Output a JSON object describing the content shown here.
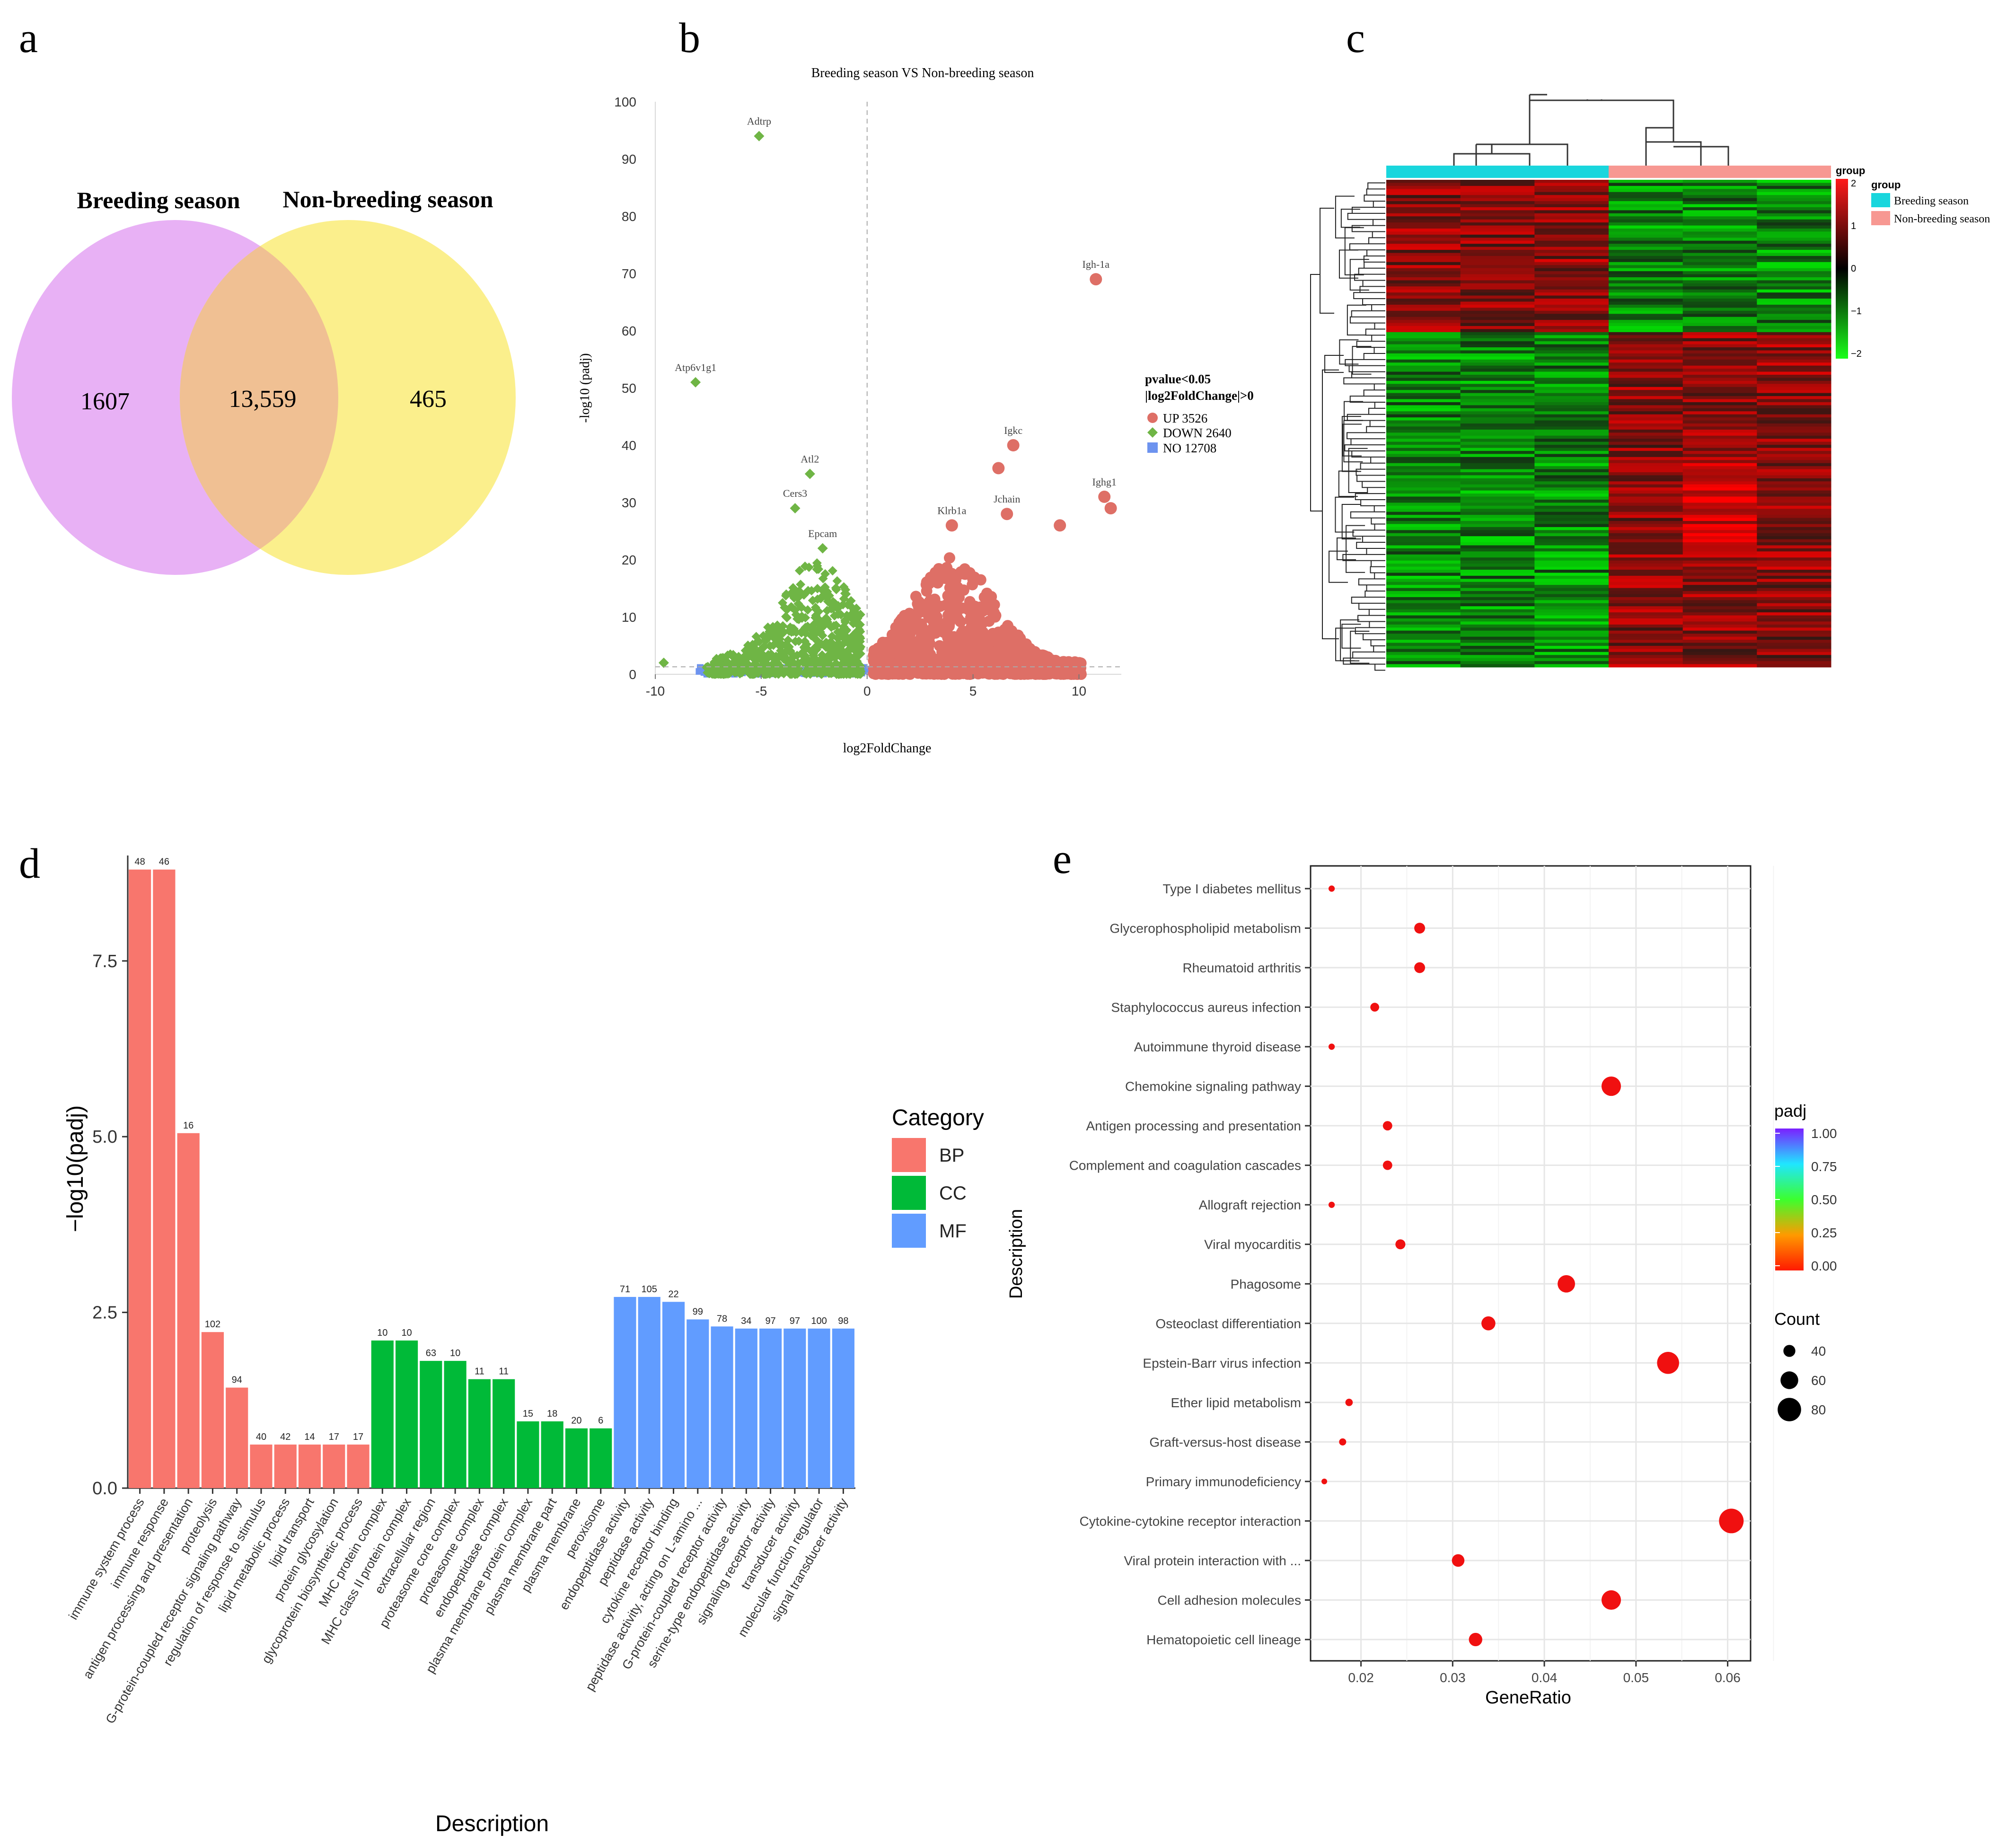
{
  "panels": {
    "a": {
      "letter": "a",
      "sets": [
        {
          "label": "Breeding season",
          "color": "#e8b1f5"
        },
        {
          "label": "Non-breeding season",
          "color": "#fbef8c"
        }
      ],
      "overlap_color": "#f0c093",
      "counts": {
        "left_only": "1607",
        "both": "13,559",
        "right_only": "465"
      }
    },
    "b": {
      "letter": "b",
      "title": "Breeding season VS Non-breeding season",
      "xlabel": "log2FoldChange",
      "ylabel": "-log10 (padj)",
      "xticks": [
        "-10",
        "-5",
        "0",
        "5",
        "10"
      ],
      "yticks": [
        "0",
        "10",
        "20",
        "30",
        "40",
        "50",
        "60",
        "70",
        "80",
        "90",
        "100"
      ],
      "legend": {
        "title_line1": "pvalue<0.05",
        "title_line2": "|log2FoldChange|>0",
        "items": [
          {
            "label": "UP 3526",
            "color": "#de6f66",
            "shape": "circle"
          },
          {
            "label": "DOWN 2640",
            "color": "#6fb545",
            "shape": "diamond"
          },
          {
            "label": "NO 12708",
            "color": "#6d93ef",
            "shape": "square"
          }
        ]
      }
    },
    "c": {
      "letter": "c",
      "legend_title": "group",
      "groups": [
        {
          "label": "Breeding season",
          "color": "#19d6dd"
        },
        {
          "label": "Non-breeding season",
          "color": "#f79892"
        }
      ],
      "colorbar_title": "group",
      "colorbar_ticks": [
        "2",
        "1",
        "0",
        "−1",
        "−2"
      ]
    },
    "d": {
      "letter": "d"
    },
    "e": {
      "letter": "e"
    }
  },
  "chart_data": [
    {
      "type": "venn",
      "sets": [
        "Breeding season",
        "Non-breeding season"
      ],
      "values": {
        "Breeding season only": 1607,
        "both": 13559,
        "Non-breeding season only": 465
      }
    },
    {
      "type": "scatter",
      "title": "Breeding season VS Non-breeding season",
      "xlabel": "log2FoldChange",
      "ylabel": "-log10 (padj)",
      "xlim": [
        -10,
        12
      ],
      "ylim": [
        0,
        100
      ],
      "labeled_points": [
        {
          "label": "Adtrp",
          "x": -5.1,
          "y": 94,
          "group": "DOWN"
        },
        {
          "label": "Atp6v1g1",
          "x": -8.1,
          "y": 51,
          "group": "DOWN"
        },
        {
          "label": "Atl2",
          "x": -2.7,
          "y": 35,
          "group": "DOWN"
        },
        {
          "label": "Cers3",
          "x": -3.4,
          "y": 29,
          "group": "DOWN"
        },
        {
          "label": "Epcam",
          "x": -2.1,
          "y": 22,
          "group": "DOWN"
        },
        {
          "label": "Igh-1a",
          "x": 10.8,
          "y": 69,
          "group": "UP"
        },
        {
          "label": "Igkc",
          "x": 6.9,
          "y": 40,
          "group": "UP"
        },
        {
          "label": "Ighg1",
          "x": 11.2,
          "y": 31,
          "group": "UP"
        },
        {
          "label": "Jchain",
          "x": 6.6,
          "y": 28,
          "group": "UP"
        },
        {
          "label": "Klrb1a",
          "x": 4.0,
          "y": 26,
          "group": "UP"
        }
      ],
      "extra_points": [
        {
          "x": 6.2,
          "y": 36,
          "group": "UP"
        },
        {
          "x": 9.1,
          "y": 26,
          "group": "UP"
        },
        {
          "x": 11.5,
          "y": 29,
          "group": "UP"
        },
        {
          "x": -9.6,
          "y": 2,
          "group": "DOWN"
        }
      ],
      "series": [
        {
          "name": "UP 3526",
          "count": 3526
        },
        {
          "name": "DOWN 2640",
          "count": 2640
        },
        {
          "name": "NO 12708",
          "count": 12708
        }
      ]
    },
    {
      "type": "heatmap",
      "columns": 6,
      "column_groups": [
        "Breeding season",
        "Breeding season",
        "Breeding season",
        "Non-breeding season",
        "Non-breeding season",
        "Non-breeding season"
      ],
      "color_range": [
        -2,
        2
      ]
    },
    {
      "type": "bar",
      "ylabel": "−log10(padj)",
      "xlabel": "Description",
      "ylim": [
        0,
        9
      ],
      "yticks": [
        "0.0",
        "2.5",
        "5.0",
        "7.5"
      ],
      "legend_title": "Category",
      "legend": [
        {
          "name": "BP",
          "color": "#f8766d"
        },
        {
          "name": "CC",
          "color": "#00ba38"
        },
        {
          "name": "MF",
          "color": "#619cff"
        }
      ],
      "bars": [
        {
          "label": "immune system process",
          "value": 8.8,
          "count": "48",
          "category": "BP"
        },
        {
          "label": "immune response",
          "value": 8.8,
          "count": "46",
          "category": "BP"
        },
        {
          "label": "antigen processing and presentation",
          "value": 5.05,
          "count": "16",
          "category": "BP"
        },
        {
          "label": "proteolysis",
          "value": 2.22,
          "count": "102",
          "category": "BP"
        },
        {
          "label": "G-protein-coupled receptor signaling pathway",
          "value": 1.43,
          "count": "94",
          "category": "BP"
        },
        {
          "label": "regulation of response to stimulus",
          "value": 0.62,
          "count": "40",
          "category": "BP"
        },
        {
          "label": "lipid metabolic process",
          "value": 0.62,
          "count": "42",
          "category": "BP"
        },
        {
          "label": "lipid transport",
          "value": 0.62,
          "count": "14",
          "category": "BP"
        },
        {
          "label": "protein glycosylation",
          "value": 0.62,
          "count": "17",
          "category": "BP"
        },
        {
          "label": "glycoprotein biosynthetic process",
          "value": 0.62,
          "count": "17",
          "category": "BP"
        },
        {
          "label": "MHC protein complex",
          "value": 2.1,
          "count": "10",
          "category": "CC"
        },
        {
          "label": "MHC class II protein complex",
          "value": 2.1,
          "count": "10",
          "category": "CC"
        },
        {
          "label": "extracellular region",
          "value": 1.81,
          "count": "63",
          "category": "CC"
        },
        {
          "label": "proteasome core complex",
          "value": 1.81,
          "count": "10",
          "category": "CC"
        },
        {
          "label": "proteasome complex",
          "value": 1.55,
          "count": "11",
          "category": "CC"
        },
        {
          "label": "endopeptidase complex",
          "value": 1.55,
          "count": "11",
          "category": "CC"
        },
        {
          "label": "plasma membrane protein complex",
          "value": 0.95,
          "count": "15",
          "category": "CC"
        },
        {
          "label": "plasma membrane part",
          "value": 0.95,
          "count": "18",
          "category": "CC"
        },
        {
          "label": "plasma membrane",
          "value": 0.85,
          "count": "20",
          "category": "CC"
        },
        {
          "label": "peroxisome",
          "value": 0.85,
          "count": "6",
          "category": "CC"
        },
        {
          "label": "endopeptidase activity",
          "value": 2.72,
          "count": "71",
          "category": "MF"
        },
        {
          "label": "peptidase activity",
          "value": 2.72,
          "count": "105",
          "category": "MF"
        },
        {
          "label": "cytokine receptor binding",
          "value": 2.65,
          "count": "22",
          "category": "MF"
        },
        {
          "label": "peptidase activity, acting on L-amino ...",
          "value": 2.4,
          "count": "99",
          "category": "MF"
        },
        {
          "label": "G-protein-coupled receptor activity",
          "value": 2.3,
          "count": "78",
          "category": "MF"
        },
        {
          "label": "serine-type endopeptidase activity",
          "value": 2.27,
          "count": "34",
          "category": "MF"
        },
        {
          "label": "signaling receptor activity",
          "value": 2.27,
          "count": "97",
          "category": "MF"
        },
        {
          "label": "transducer activity",
          "value": 2.27,
          "count": "97",
          "category": "MF"
        },
        {
          "label": "molecular function regulator",
          "value": 2.27,
          "count": "100",
          "category": "MF"
        },
        {
          "label": "signal transducer activity",
          "value": 2.27,
          "count": "98",
          "category": "MF"
        }
      ]
    },
    {
      "type": "scatter",
      "xlabel": "GeneRatio",
      "ylabel": "Description",
      "xlim": [
        0.0145,
        0.0625
      ],
      "xticks": [
        "0.02",
        "0.03",
        "0.04",
        "0.05",
        "0.06"
      ],
      "color_legend": {
        "title": "padj",
        "ticks": [
          "1.00",
          "0.75",
          "0.50",
          "0.25",
          "0.00"
        ]
      },
      "size_legend": {
        "title": "Count",
        "ticks": [
          "40",
          "60",
          "80"
        ]
      },
      "points": [
        {
          "label": "Type I diabetes mellitus",
          "x": 0.0168,
          "count": 20
        },
        {
          "label": "Glycerophospholipid metabolism",
          "x": 0.0264,
          "count": 36
        },
        {
          "label": "Rheumatoid arthritis",
          "x": 0.0264,
          "count": 36
        },
        {
          "label": "Staphylococcus aureus infection",
          "x": 0.0215,
          "count": 29
        },
        {
          "label": "Autoimmune thyroid disease",
          "x": 0.0168,
          "count": 20
        },
        {
          "label": "Chemokine signaling pathway",
          "x": 0.0473,
          "count": 66
        },
        {
          "label": "Antigen processing and presentation",
          "x": 0.0229,
          "count": 31
        },
        {
          "label": "Complement and coagulation cascades",
          "x": 0.0229,
          "count": 31
        },
        {
          "label": "Allograft rejection",
          "x": 0.0168,
          "count": 20
        },
        {
          "label": "Viral myocarditis",
          "x": 0.0243,
          "count": 33
        },
        {
          "label": "Phagosome",
          "x": 0.0424,
          "count": 59
        },
        {
          "label": "Osteoclast differentiation",
          "x": 0.0339,
          "count": 47
        },
        {
          "label": "Epstein-Barr virus infection",
          "x": 0.0535,
          "count": 75
        },
        {
          "label": "Ether lipid metabolism",
          "x": 0.0187,
          "count": 24
        },
        {
          "label": "Graft-versus-host disease",
          "x": 0.018,
          "count": 23
        },
        {
          "label": "Primary immunodeficiency",
          "x": 0.016,
          "count": 18
        },
        {
          "label": "Cytokine-cytokine receptor interaction",
          "x": 0.0604,
          "count": 84
        },
        {
          "label": "Viral protein interaction with ...",
          "x": 0.0306,
          "count": 42
        },
        {
          "label": "Cell adhesion molecules",
          "x": 0.0473,
          "count": 66
        },
        {
          "label": "Hematopoietic cell lineage",
          "x": 0.0325,
          "count": 45
        }
      ]
    }
  ]
}
